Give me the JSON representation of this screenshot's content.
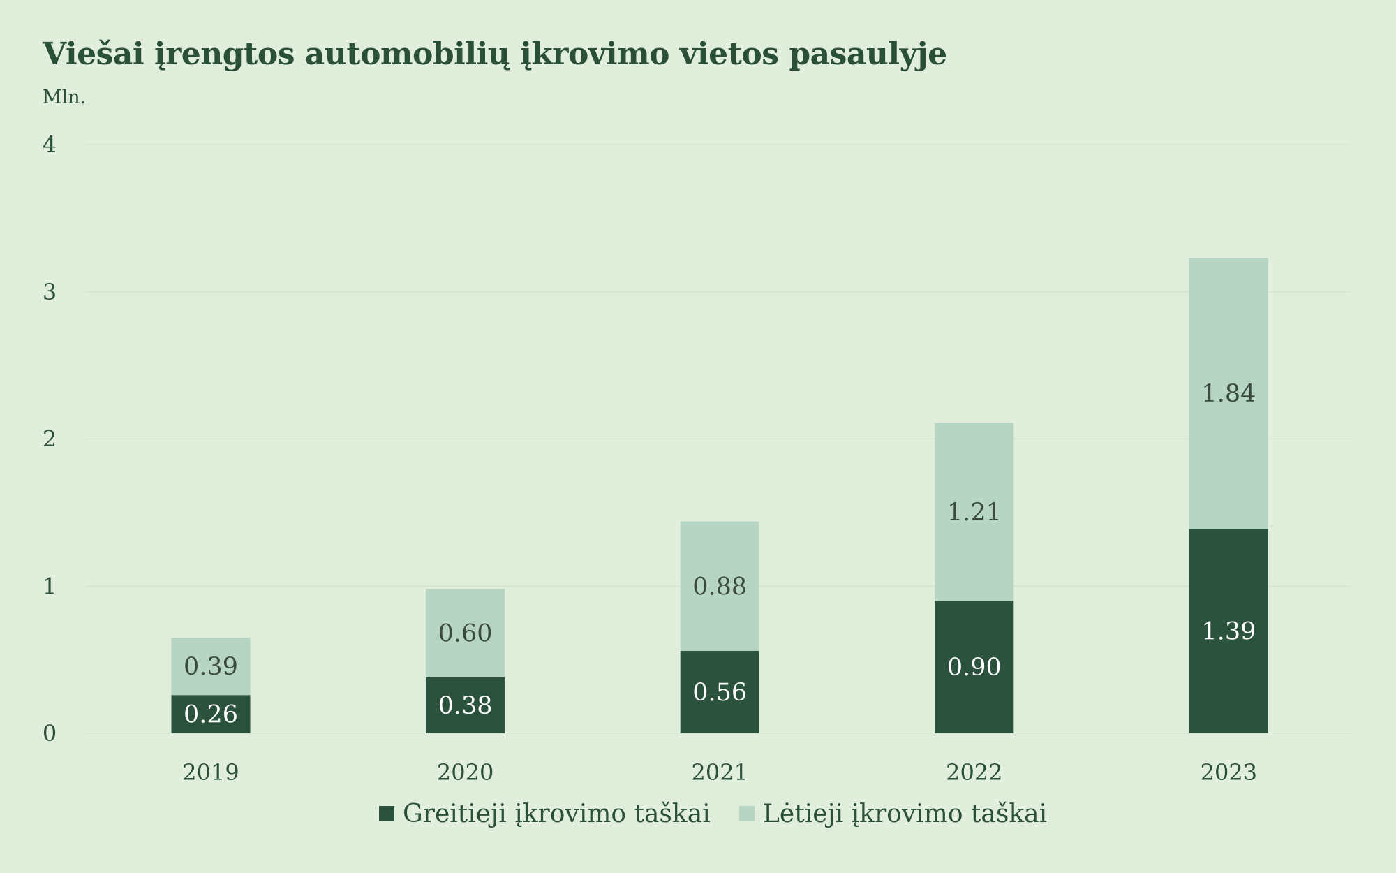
{
  "chart_data": {
    "type": "bar",
    "stacked": true,
    "title": "Viešai įrengtos automobilių įkrovimo vietos pasaulyje",
    "subtitle": "Mln.",
    "categories": [
      "2019",
      "2020",
      "2021",
      "2022",
      "2023"
    ],
    "series": [
      {
        "name": "Greitieji įkrovimo taškai",
        "color": "#2a523c",
        "values": [
          0.26,
          0.38,
          0.56,
          0.9,
          1.39
        ],
        "labels": [
          "0.26",
          "0.38",
          "0.56",
          "0.90",
          "1.39"
        ]
      },
      {
        "name": "Lėtieji įkrovimo taškai",
        "color": "#b6d5c2",
        "values": [
          0.39,
          0.6,
          0.88,
          1.21,
          1.84
        ],
        "labels": [
          "0.39",
          "0.60",
          "0.88",
          "1.21",
          "1.84"
        ]
      }
    ],
    "ylim": [
      0,
      4
    ],
    "yticks": [
      "0",
      "1",
      "2",
      "3",
      "4"
    ],
    "grid": true,
    "legend": "bottom-center"
  }
}
